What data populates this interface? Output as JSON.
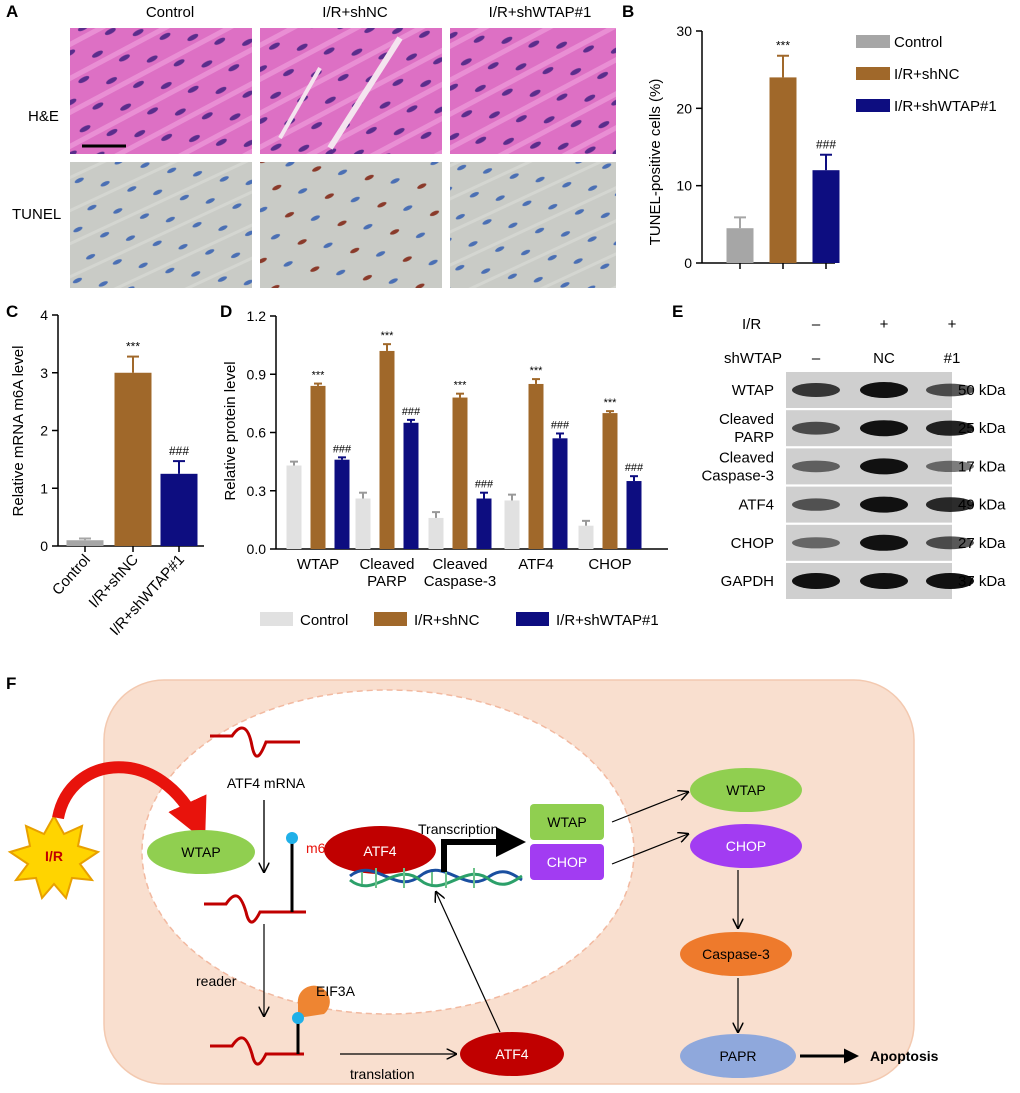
{
  "panels": {
    "a": "A",
    "b": "B",
    "c": "C",
    "d": "D",
    "e": "E",
    "f": "F"
  },
  "colors": {
    "control": "#a6a6a6",
    "control_light": "#e1e1e1",
    "shnc": "#a0682a",
    "shwtap": "#0d0d80",
    "he": "#d96bbf",
    "tunel": "#c7c8c4",
    "cell_bg": "#f9dfcf"
  },
  "panel_a": {
    "columns": [
      "Control",
      "I/R+shNC",
      "I/R+shWTAP#1"
    ],
    "rows": [
      "H&E",
      "TUNEL"
    ]
  },
  "panel_b": {
    "chart_data": {
      "type": "bar",
      "categories": [
        "Control",
        "I/R+shNC",
        "I/R+shWTAP#1"
      ],
      "values": [
        4.5,
        24,
        12
      ],
      "errors": [
        1.4,
        2.8,
        2.0
      ],
      "ylabel": "TUNEL-positive cells (%)",
      "ylim": [
        0,
        30
      ],
      "yticks": [
        "0",
        "10",
        "20",
        "30"
      ],
      "significance": [
        "",
        "***",
        "###"
      ],
      "legend": [
        "Control",
        "I/R+shNC",
        "I/R+shWTAP#1"
      ],
      "legend_position": "right"
    }
  },
  "panel_c": {
    "chart_data": {
      "type": "bar",
      "categories": [
        "Control",
        "I/R+shNC",
        "I/R+shWTAP#1"
      ],
      "values": [
        0.1,
        3.0,
        1.25
      ],
      "errors": [
        0.03,
        0.28,
        0.22
      ],
      "ylabel": "Relative mRNA m6A level",
      "ylim": [
        0,
        4
      ],
      "yticks": [
        "0",
        "1",
        "2",
        "3",
        "4"
      ],
      "significance": [
        "",
        "***",
        "###"
      ]
    }
  },
  "panel_d": {
    "chart_data": {
      "type": "bar",
      "categories": [
        "WTAP",
        "Cleaved PARP",
        "Cleaved Caspase-3",
        "ATF4",
        "CHOP"
      ],
      "category_lines": [
        [
          "WTAP"
        ],
        [
          "Cleaved",
          "PARP"
        ],
        [
          "Cleaved",
          "Caspase-3"
        ],
        [
          "ATF4"
        ],
        [
          "CHOP"
        ]
      ],
      "series": [
        {
          "name": "Control",
          "values": [
            0.43,
            0.26,
            0.16,
            0.25,
            0.12
          ],
          "errors": [
            0.02,
            0.03,
            0.03,
            0.03,
            0.025
          ]
        },
        {
          "name": "I/R+shNC",
          "values": [
            0.84,
            1.02,
            0.78,
            0.85,
            0.7
          ],
          "errors": [
            0.012,
            0.035,
            0.02,
            0.025,
            0.01
          ]
        },
        {
          "name": "I/R+shWTAP#1",
          "values": [
            0.46,
            0.65,
            0.26,
            0.57,
            0.35
          ],
          "errors": [
            0.012,
            0.015,
            0.03,
            0.025,
            0.025
          ]
        }
      ],
      "ylabel": "Relative protein level",
      "ylim": [
        0,
        1.2
      ],
      "yticks": [
        "0.0",
        "0.3",
        "0.6",
        "0.9",
        "1.2"
      ],
      "significance": {
        "I/R+shNC": "***",
        "I/R+shWTAP#1": "###"
      },
      "legend_position": "bottom"
    }
  },
  "panel_e": {
    "header_rows": [
      {
        "label": "I/R",
        "values": [
          "–",
          "+",
          "+"
        ]
      },
      {
        "label": "shWTAP",
        "values": [
          "–",
          "NC",
          "#1"
        ]
      }
    ],
    "blots": [
      {
        "label": [
          "WTAP"
        ],
        "kda": "50 kDa",
        "intensity": [
          0.75,
          1.0,
          0.6
        ]
      },
      {
        "label": [
          "Cleaved",
          "PARP"
        ],
        "kda": "25 kDa",
        "intensity": [
          0.6,
          1.0,
          0.9
        ]
      },
      {
        "label": [
          "Cleaved",
          "Caspase-3"
        ],
        "kda": "17 kDa",
        "intensity": [
          0.45,
          1.0,
          0.4
        ]
      },
      {
        "label": [
          "ATF4"
        ],
        "kda": "49 kDa",
        "intensity": [
          0.55,
          1.0,
          0.85
        ]
      },
      {
        "label": [
          "CHOP"
        ],
        "kda": "27 kDa",
        "intensity": [
          0.4,
          1.0,
          0.6
        ]
      },
      {
        "label": [
          "GAPDH"
        ],
        "kda": "37 kDa",
        "intensity": [
          1.0,
          1.0,
          1.0
        ]
      }
    ]
  },
  "panel_f": {
    "stimulus": "I/R",
    "atf4_mrna": "ATF4 mRNA",
    "wtap_nucleus": "WTAP",
    "m6a": "m6A",
    "reader": "reader",
    "eif3a": "EIF3A",
    "translation": "translation",
    "atf4_cytoplasm": "ATF4",
    "atf4_nucleus": "ATF4",
    "transcription": "Transcription",
    "gene_wtap": "WTAP",
    "gene_chop": "CHOP",
    "protein_wtap": "WTAP",
    "protein_chop": "CHOP",
    "caspase3": "Caspase-3",
    "papr": "PAPR",
    "apoptosis": "Apoptosis"
  }
}
